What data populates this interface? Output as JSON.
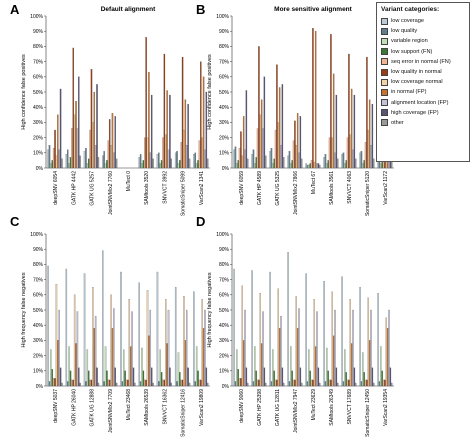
{
  "legend": {
    "title": "Variant categories:",
    "items": [
      {
        "label": "low coverage",
        "color": "#b9cbd6"
      },
      {
        "label": "low quality",
        "color": "#5f7f8f"
      },
      {
        "label": "variable region",
        "color": "#bfe0b4"
      },
      {
        "label": "low support (FN)",
        "color": "#3a7a32"
      },
      {
        "label": "seq error in normal (FN)",
        "color": "#f2b593"
      },
      {
        "label": "low quality in normal",
        "color": "#9c3c14"
      },
      {
        "label": "low coverage normal",
        "color": "#f3d2aa"
      },
      {
        "label": "in normal (FP)",
        "color": "#c5732c"
      },
      {
        "label": "alignment location (FP)",
        "color": "#c4c0d8"
      },
      {
        "label": "high coverage (FP)",
        "color": "#5a5478"
      },
      {
        "label": "other",
        "color": "#9a9a9a"
      }
    ]
  },
  "chart_data": [
    {
      "panel": "A",
      "type": "bar",
      "title": "Default alignment",
      "ylabel": "High confidence false positives",
      "ylim": [
        0,
        100
      ],
      "yticks": [
        "0%",
        "10%",
        "20%",
        "30%",
        "40%",
        "50%",
        "60%",
        "70%",
        "80%",
        "90%",
        "100%"
      ],
      "categories": [
        "deepSNV 6054",
        "GATK HP 4442",
        "GATK UG 5257",
        "JointSNVMix2 7760",
        "MuTect 0",
        "SAMtools 3520",
        "SNVVCT 3992",
        "SomaticSniper 5099",
        "VarScan2 1341"
      ],
      "series": [
        {
          "name": "low coverage",
          "values": [
            12,
            9,
            11,
            8,
            0,
            7,
            9,
            10,
            9
          ]
        },
        {
          "name": "low quality",
          "values": [
            15,
            12,
            13,
            11,
            0,
            9,
            10,
            11,
            10
          ]
        },
        {
          "name": "variable region",
          "values": [
            3,
            3,
            3,
            3,
            0,
            3,
            3,
            3,
            3
          ]
        },
        {
          "name": "low support (FN)",
          "values": [
            5,
            7,
            6,
            5,
            0,
            5,
            5,
            5,
            5
          ]
        },
        {
          "name": "seq error in normal (FN)",
          "values": [
            13,
            26,
            25,
            18,
            0,
            20,
            20,
            17,
            18
          ]
        },
        {
          "name": "low quality in normal",
          "values": [
            25,
            79,
            65,
            32,
            0,
            86,
            75,
            73,
            70
          ]
        },
        {
          "name": "low coverage normal",
          "values": [
            8,
            35,
            30,
            15,
            0,
            20,
            22,
            25,
            20
          ]
        },
        {
          "name": "in normal (FP)",
          "values": [
            35,
            44,
            50,
            36,
            0,
            63,
            51,
            45,
            60
          ]
        },
        {
          "name": "alignment location (FP)",
          "values": [
            12,
            26,
            15,
            10,
            0,
            10,
            12,
            15,
            12
          ]
        },
        {
          "name": "high coverage (FP)",
          "values": [
            52,
            60,
            55,
            34,
            0,
            48,
            48,
            42,
            50
          ]
        },
        {
          "name": "other",
          "values": [
            6,
            8,
            7,
            6,
            0,
            6,
            6,
            6,
            6
          ]
        }
      ]
    },
    {
      "panel": "B",
      "type": "bar",
      "title": "More sensitive alignment",
      "ylabel": "High confidence false positives",
      "ylim": [
        0,
        100
      ],
      "yticks": [
        "0%",
        "10%",
        "20%",
        "30%",
        "40%",
        "50%",
        "60%",
        "70%",
        "80%",
        "90%",
        "100%"
      ],
      "categories": [
        "deepSNV 6059",
        "GATK HP 4589",
        "GATK UG 5325",
        "JointSNVMix2 7866",
        "MuTect 67",
        "SAMtools 3561",
        "SNVVCT 4063",
        "SomaticSniper 5120",
        "VarScan2 1172"
      ],
      "series": [
        {
          "name": "low coverage",
          "values": [
            12,
            9,
            11,
            8,
            3,
            7,
            9,
            10,
            9
          ]
        },
        {
          "name": "low quality",
          "values": [
            14,
            12,
            13,
            11,
            2,
            9,
            10,
            11,
            10
          ]
        },
        {
          "name": "variable region",
          "values": [
            3,
            3,
            3,
            3,
            2,
            3,
            3,
            3,
            3
          ]
        },
        {
          "name": "low support (FN)",
          "values": [
            5,
            7,
            6,
            5,
            3,
            5,
            5,
            5,
            5
          ]
        },
        {
          "name": "seq error in normal (FN)",
          "values": [
            13,
            26,
            25,
            18,
            5,
            20,
            20,
            17,
            18
          ]
        },
        {
          "name": "low quality in normal",
          "values": [
            24,
            80,
            68,
            31,
            92,
            88,
            75,
            73,
            73
          ]
        },
        {
          "name": "low coverage normal",
          "values": [
            8,
            35,
            30,
            15,
            4,
            20,
            22,
            25,
            20
          ]
        },
        {
          "name": "in normal (FP)",
          "values": [
            34,
            45,
            53,
            36,
            90,
            62,
            52,
            45,
            57
          ]
        },
        {
          "name": "alignment location (FP)",
          "values": [
            12,
            26,
            15,
            10,
            3,
            10,
            12,
            15,
            12
          ]
        },
        {
          "name": "high coverage (FP)",
          "values": [
            51,
            60,
            55,
            34,
            3,
            48,
            48,
            42,
            50
          ]
        },
        {
          "name": "other",
          "values": [
            6,
            8,
            7,
            6,
            2,
            6,
            6,
            6,
            6
          ]
        }
      ]
    },
    {
      "panel": "C",
      "type": "bar",
      "title": "",
      "ylabel": "High frequency false negatives",
      "ylim": [
        0,
        100
      ],
      "yticks": [
        "0%",
        "10%",
        "20%",
        "30%",
        "40%",
        "50%",
        "60%",
        "70%",
        "80%",
        "90%",
        "100%"
      ],
      "categories": [
        "deepSNV 5037",
        "GATK HP 26040",
        "GATK UG 12888",
        "JointSNVMix2 7709",
        "MuTect 23468",
        "SAMtools 26539",
        "SNVVCT 16362",
        "SomaticSniper 12416",
        "VarScan2 19809"
      ],
      "series": [
        {
          "name": "low coverage",
          "values": [
            79,
            77,
            74,
            89,
            75,
            68,
            75,
            65,
            62
          ]
        },
        {
          "name": "low quality",
          "values": [
            3,
            3,
            3,
            3,
            3,
            3,
            3,
            3,
            3
          ]
        },
        {
          "name": "variable region",
          "values": [
            24,
            26,
            24,
            26,
            24,
            25,
            24,
            22,
            26
          ]
        },
        {
          "name": "low support (FN)",
          "values": [
            11,
            10,
            10,
            10,
            10,
            10,
            9,
            9,
            10
          ]
        },
        {
          "name": "seq error in normal (FN)",
          "values": [
            5,
            4,
            4,
            4,
            4,
            4,
            4,
            4,
            4
          ]
        },
        {
          "name": "low quality in normal",
          "values": [
            5,
            4,
            4,
            4,
            4,
            4,
            4,
            4,
            4
          ]
        },
        {
          "name": "low coverage normal",
          "values": [
            67,
            60,
            65,
            60,
            57,
            63,
            57,
            59,
            57
          ]
        },
        {
          "name": "in normal (FP)",
          "values": [
            30,
            28,
            38,
            38,
            26,
            33,
            28,
            30,
            38
          ]
        },
        {
          "name": "alignment location (FP)",
          "values": [
            50,
            49,
            46,
            51,
            49,
            50,
            50,
            50,
            50
          ]
        },
        {
          "name": "high coverage (FP)",
          "values": [
            12,
            12,
            12,
            12,
            12,
            12,
            12,
            12,
            12
          ]
        },
        {
          "name": "other",
          "values": [
            2,
            2,
            2,
            2,
            2,
            2,
            2,
            2,
            2
          ]
        }
      ]
    },
    {
      "panel": "D",
      "type": "bar",
      "title": "",
      "ylabel": "High frequency false negatives",
      "ylim": [
        0,
        100
      ],
      "yticks": [
        "0%",
        "10%",
        "20%",
        "30%",
        "40%",
        "50%",
        "60%",
        "70%",
        "80%",
        "90%",
        "100%"
      ],
      "categories": [
        "deepSNV 9060",
        "GATK HP 25398",
        "GATK UG 12811",
        "JointSNVMix2 7947",
        "MuTect 23629",
        "SAMtools 26349",
        "SNVVCT 17689",
        "SomaticSniper 12450",
        "VarScan2 19354"
      ],
      "series": [
        {
          "name": "low coverage",
          "values": [
            77,
            76,
            75,
            88,
            74,
            69,
            72,
            65,
            61
          ]
        },
        {
          "name": "low quality",
          "values": [
            3,
            3,
            3,
            3,
            3,
            3,
            3,
            3,
            3
          ]
        },
        {
          "name": "variable region",
          "values": [
            24,
            26,
            24,
            26,
            24,
            25,
            24,
            22,
            26
          ]
        },
        {
          "name": "low support (FN)",
          "values": [
            11,
            10,
            10,
            10,
            10,
            10,
            9,
            9,
            10
          ]
        },
        {
          "name": "seq error in normal (FN)",
          "values": [
            5,
            4,
            4,
            4,
            4,
            4,
            4,
            4,
            4
          ]
        },
        {
          "name": "low quality in normal",
          "values": [
            5,
            4,
            4,
            4,
            4,
            4,
            4,
            4,
            4
          ]
        },
        {
          "name": "low coverage normal",
          "values": [
            66,
            61,
            64,
            59,
            57,
            62,
            57,
            58,
            45
          ]
        },
        {
          "name": "in normal (FP)",
          "values": [
            30,
            28,
            38,
            38,
            26,
            33,
            28,
            30,
            38
          ]
        },
        {
          "name": "alignment location (FP)",
          "values": [
            50,
            49,
            46,
            51,
            49,
            50,
            50,
            50,
            50
          ]
        },
        {
          "name": "high coverage (FP)",
          "values": [
            12,
            12,
            12,
            12,
            12,
            12,
            12,
            12,
            12
          ]
        },
        {
          "name": "other",
          "values": [
            2,
            2,
            2,
            2,
            2,
            2,
            2,
            2,
            2
          ]
        }
      ]
    }
  ]
}
